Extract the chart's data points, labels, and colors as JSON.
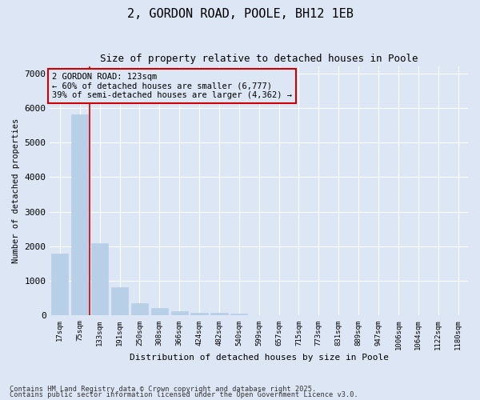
{
  "title1": "2, GORDON ROAD, POOLE, BH12 1EB",
  "title2": "Size of property relative to detached houses in Poole",
  "xlabel": "Distribution of detached houses by size in Poole",
  "ylabel": "Number of detached properties",
  "categories": [
    "17sqm",
    "75sqm",
    "133sqm",
    "191sqm",
    "250sqm",
    "308sqm",
    "366sqm",
    "424sqm",
    "482sqm",
    "540sqm",
    "599sqm",
    "657sqm",
    "715sqm",
    "773sqm",
    "831sqm",
    "889sqm",
    "947sqm",
    "1006sqm",
    "1064sqm",
    "1122sqm",
    "1180sqm"
  ],
  "values": [
    1780,
    5820,
    2090,
    810,
    360,
    210,
    120,
    90,
    80,
    55,
    0,
    0,
    0,
    0,
    0,
    0,
    0,
    0,
    0,
    0,
    0
  ],
  "bar_color": "#b8cfe8",
  "bar_edge_color": "#b8cfe8",
  "background_color": "#dce6f5",
  "plot_bg_color": "#dce6f5",
  "grid_color": "#ffffff",
  "vline_color": "#cc0000",
  "annotation_line1": "2 GORDON ROAD: 123sqm",
  "annotation_line2": "← 60% of detached houses are smaller (6,777)",
  "annotation_line3": "39% of semi-detached houses are larger (4,362) →",
  "annotation_box_color": "#cc0000",
  "ylim": [
    0,
    7200
  ],
  "yticks": [
    0,
    1000,
    2000,
    3000,
    4000,
    5000,
    6000,
    7000
  ],
  "footer1": "Contains HM Land Registry data © Crown copyright and database right 2025.",
  "footer2": "Contains public sector information licensed under the Open Government Licence v3.0."
}
